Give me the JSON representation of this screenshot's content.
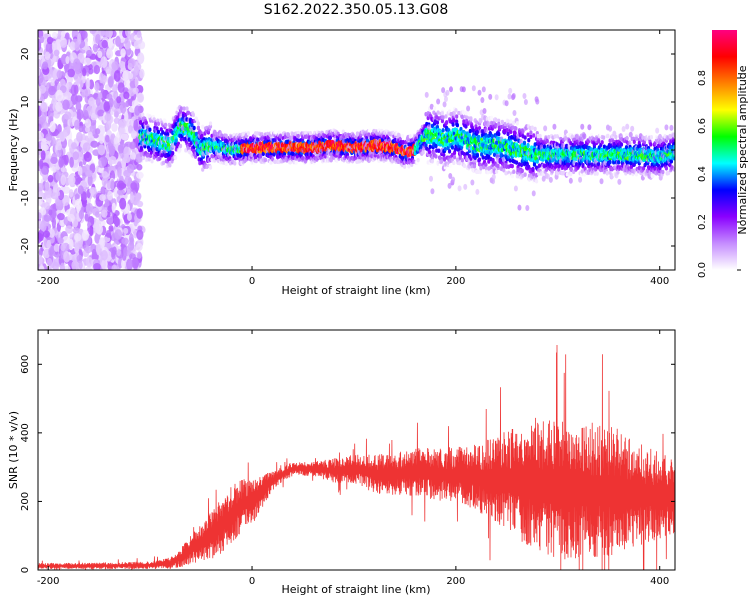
{
  "title": "S162.2022.350.05.13.G08",
  "chart_data": [
    {
      "type": "heatmap",
      "xlabel": "Height of straight line (km)",
      "ylabel": "Frequency (Hz)",
      "xlim": [
        -210,
        415
      ],
      "ylim": [
        -25,
        25
      ],
      "xticks": [
        -200,
        0,
        200,
        400
      ],
      "yticks": [
        -20,
        -10,
        0,
        10,
        20
      ],
      "colorbar": {
        "label": "Normalized spectral amplitude",
        "range": [
          0,
          1
        ],
        "ticks": [
          "0.0",
          "0.2",
          "0.4",
          "0.6",
          "0.8"
        ],
        "colors": [
          "#ffffff",
          "#c58cff",
          "#8a00ff",
          "#0000ff",
          "#00ffff",
          "#00ff00",
          "#ffff00",
          "#ff8000",
          "#ff0000",
          "#ff0080"
        ]
      },
      "ridge": {
        "x": [
          -110,
          -95,
          -80,
          -70,
          -60,
          -50,
          -40,
          -20,
          0,
          20,
          40,
          60,
          80,
          100,
          120,
          140,
          150,
          160,
          170,
          180,
          190,
          200,
          210,
          220,
          240,
          260,
          280,
          300,
          320,
          340,
          360,
          380,
          400,
          415
        ],
        "y": [
          3,
          2,
          1,
          5,
          4,
          0,
          1,
          0,
          0.5,
          0.5,
          0.5,
          0.5,
          1,
          0.5,
          1,
          0.5,
          -0.5,
          0,
          3,
          3,
          2,
          3,
          2,
          1,
          1,
          0,
          -1,
          -1,
          -1,
          -1,
          -1,
          -1,
          -1.5,
          -0.5
        ]
      }
    },
    {
      "type": "line",
      "xlabel": "Height of straight line (km)",
      "ylabel": "SNR (10 * v/v)",
      "xlim": [
        -210,
        415
      ],
      "ylim": [
        0,
        700
      ],
      "xticks": [
        -200,
        0,
        200,
        400
      ],
      "yticks": [
        0,
        200,
        400,
        600
      ],
      "color": "#ee3333",
      "envelope": {
        "x": [
          -210,
          -150,
          -100,
          -80,
          -70,
          -60,
          -50,
          -40,
          -30,
          -20,
          -10,
          0,
          10,
          20,
          30,
          40,
          60,
          80,
          100,
          120,
          140,
          160,
          180,
          200,
          220,
          240,
          260,
          280,
          300,
          320,
          340,
          360,
          380,
          400,
          415
        ],
        "mean": [
          12,
          12,
          14,
          20,
          35,
          60,
          80,
          100,
          130,
          160,
          190,
          200,
          230,
          260,
          280,
          295,
          295,
          290,
          295,
          280,
          280,
          285,
          280,
          275,
          270,
          265,
          260,
          250,
          240,
          240,
          230,
          230,
          220,
          215,
          220
        ],
        "spread": [
          6,
          7,
          8,
          12,
          20,
          30,
          40,
          50,
          60,
          60,
          55,
          50,
          35,
          20,
          15,
          15,
          15,
          25,
          30,
          40,
          45,
          50,
          55,
          60,
          70,
          90,
          120,
          140,
          150,
          150,
          140,
          130,
          110,
          90,
          80
        ]
      }
    }
  ]
}
